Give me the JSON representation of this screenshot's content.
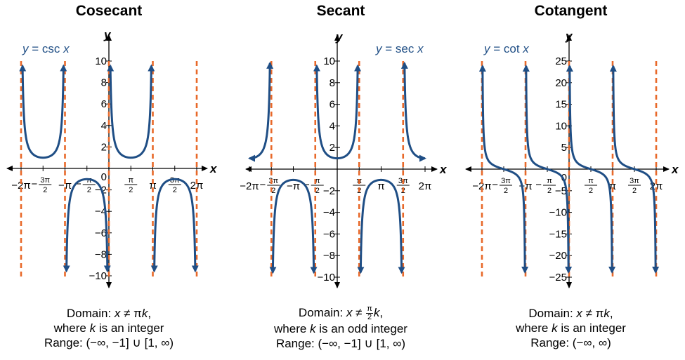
{
  "colors": {
    "curve": "#1f4e85",
    "asymptote": "#e8692a",
    "label": "#1f4e85"
  },
  "chart_data": [
    {
      "type": "line",
      "title": "Cosecant",
      "function": "csc",
      "equation_label": "y = csc x",
      "xlabel": "x",
      "ylabel": "y",
      "xlim": [
        -6.2832,
        6.2832
      ],
      "ylim": [
        -10,
        10
      ],
      "x_ticks": [
        {
          "value": -6.2832,
          "whole": "−2π"
        },
        {
          "value": -4.7124,
          "sign": "−",
          "num": "3π",
          "den": "2"
        },
        {
          "value": -3.1416,
          "whole": "−π"
        },
        {
          "value": -1.5708,
          "sign": "−",
          "num": "π",
          "den": "2"
        },
        {
          "value": 1.5708,
          "num": "π",
          "den": "2"
        },
        {
          "value": 3.1416,
          "whole": "π"
        },
        {
          "value": 4.7124,
          "num": "3π",
          "den": "2"
        },
        {
          "value": 6.2832,
          "whole": "2π"
        }
      ],
      "y_ticks": [
        "10",
        "8",
        "6",
        "4",
        "2",
        "2",
        "4",
        "6",
        "8",
        "10"
      ],
      "y_tick_values": [
        10,
        8,
        6,
        4,
        2,
        -2,
        -4,
        -6,
        -8,
        -10
      ],
      "y_tick_signs": [
        "",
        "",
        "",
        "",
        "",
        "−",
        "−",
        "−",
        "−",
        "−"
      ],
      "origin_label": "0",
      "asymptotes": [
        -6.2832,
        -3.1416,
        0,
        3.1416,
        6.2832
      ],
      "curve_intervals": [
        [
          -6.2832,
          -3.1416
        ],
        [
          -3.1416,
          0
        ],
        [
          0,
          3.1416
        ],
        [
          3.1416,
          6.2832
        ]
      ],
      "domain_parts": [
        "Domain: ",
        "x",
        " ≠ π",
        "k",
        ","
      ],
      "where_parts": [
        "where ",
        "k",
        " is an integer"
      ],
      "range": "Range: (−∞, −1] ∪ [1, ∞)"
    },
    {
      "type": "line",
      "title": "Secant",
      "function": "sec",
      "equation_label": "y = sec x",
      "xlabel": "x",
      "ylabel": "y",
      "xlim": [
        -6.2832,
        6.2832
      ],
      "ylim": [
        -10,
        10
      ],
      "x_ticks": [
        {
          "value": -6.2832,
          "whole": "−2π"
        },
        {
          "value": -4.7124,
          "sign": "−",
          "num": "3π",
          "den": "2"
        },
        {
          "value": -3.1416,
          "whole": "−π"
        },
        {
          "value": -1.5708,
          "sign": "−",
          "num": "π",
          "den": "2"
        },
        {
          "value": 1.5708,
          "num": "π",
          "den": "2"
        },
        {
          "value": 3.1416,
          "whole": "π"
        },
        {
          "value": 4.7124,
          "num": "3π",
          "den": "2"
        },
        {
          "value": 6.2832,
          "whole": "2π"
        }
      ],
      "y_ticks": [
        "10",
        "8",
        "6",
        "4",
        "2",
        "2",
        "4",
        "6",
        "8",
        "10"
      ],
      "y_tick_values": [
        10,
        8,
        6,
        4,
        2,
        -2,
        -4,
        -6,
        -8,
        -10
      ],
      "y_tick_signs": [
        "",
        "",
        "",
        "",
        "",
        "−",
        "−",
        "−",
        "−",
        "−"
      ],
      "origin_label": "",
      "asymptotes": [
        -4.7124,
        -1.5708,
        1.5708,
        4.7124
      ],
      "curve_intervals": [
        [
          -6.2832,
          -4.7124
        ],
        [
          -4.7124,
          -1.5708
        ],
        [
          -1.5708,
          1.5708
        ],
        [
          1.5708,
          4.7124
        ],
        [
          4.7124,
          6.2832
        ]
      ],
      "domain_parts": [
        "Domain: ",
        "x",
        " ≠ ",
        "π",
        "2",
        "k",
        ","
      ],
      "where_parts": [
        "where ",
        "k",
        " is an odd integer"
      ],
      "range": "Range: (−∞, −1] ∪ [1, ∞)"
    },
    {
      "type": "line",
      "title": "Cotangent",
      "function": "cot",
      "equation_label": "y = cot x",
      "xlabel": "x",
      "ylabel": "y",
      "xlim": [
        -6.2832,
        6.2832
      ],
      "ylim": [
        -25,
        25
      ],
      "x_ticks": [
        {
          "value": -6.2832,
          "whole": "−2π"
        },
        {
          "value": -4.7124,
          "sign": "−",
          "num": "3π",
          "den": "2"
        },
        {
          "value": -3.1416,
          "whole": "−π"
        },
        {
          "value": -1.5708,
          "sign": "−",
          "num": "π",
          "den": "2"
        },
        {
          "value": 1.5708,
          "num": "π",
          "den": "2"
        },
        {
          "value": 3.1416,
          "whole": "π"
        },
        {
          "value": 4.7124,
          "num": "3π",
          "den": "2"
        },
        {
          "value": 6.2832,
          "whole": "2π"
        }
      ],
      "y_ticks": [
        "25",
        "20",
        "15",
        "10",
        "5",
        "5",
        "10",
        "15",
        "20",
        "25"
      ],
      "y_tick_values": [
        25,
        20,
        15,
        10,
        5,
        -5,
        -10,
        -15,
        -20,
        -25
      ],
      "y_tick_signs": [
        "",
        "",
        "",
        "",
        "",
        "−",
        "−",
        "−",
        "−",
        "−"
      ],
      "origin_label": "0",
      "asymptotes": [
        -6.2832,
        -3.1416,
        0,
        3.1416,
        6.2832
      ],
      "curve_intervals": [
        [
          -6.2832,
          -3.1416
        ],
        [
          -3.1416,
          0
        ],
        [
          0,
          3.1416
        ],
        [
          3.1416,
          6.2832
        ]
      ],
      "domain_parts": [
        "Domain: ",
        "x",
        " ≠ π",
        "k",
        ","
      ],
      "where_parts": [
        "where ",
        "k",
        " is an integer"
      ],
      "range": "Range: (−∞, ∞)"
    }
  ]
}
